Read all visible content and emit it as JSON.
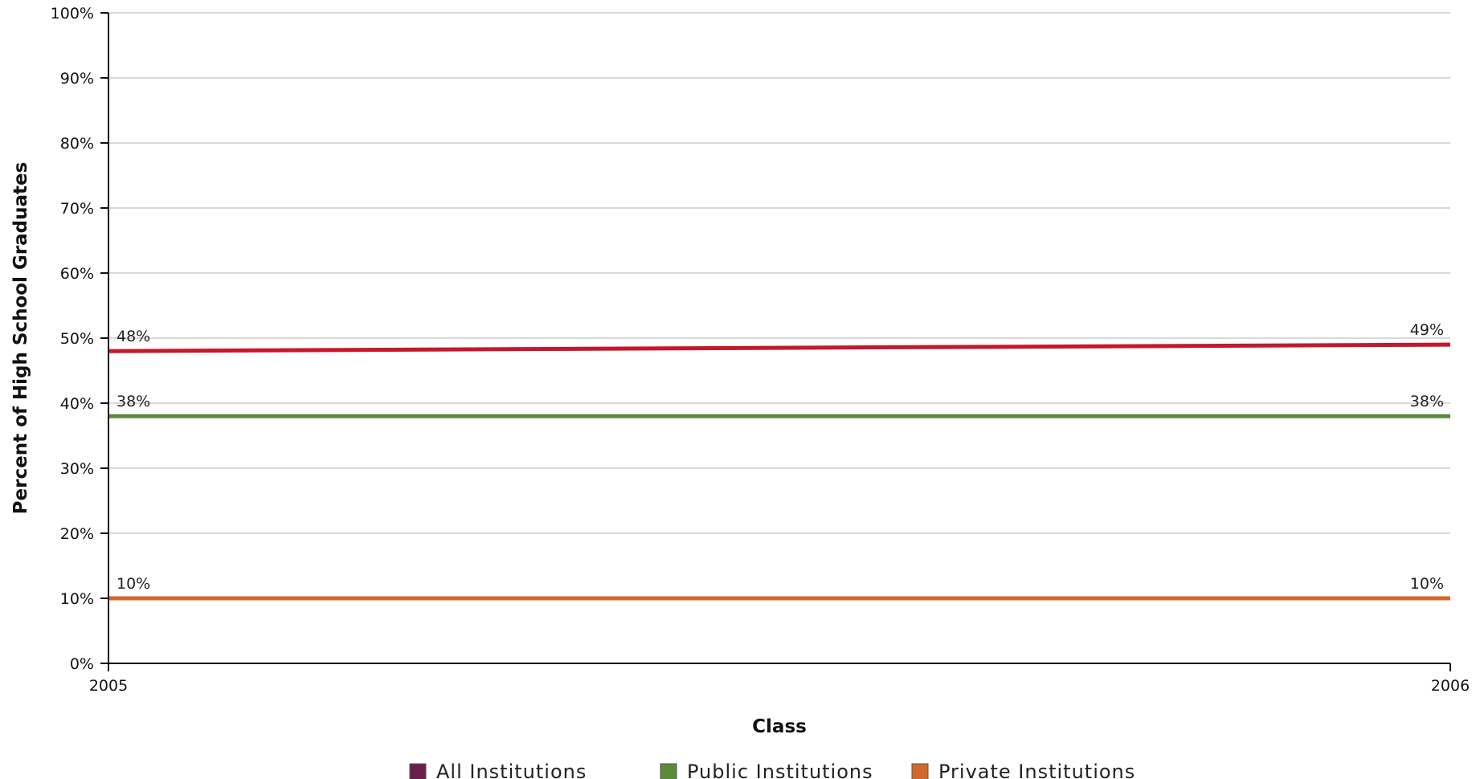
{
  "chart_data": {
    "type": "line",
    "title": "",
    "xlabel": "Class",
    "ylabel": "Percent of High School Graduates",
    "x": [
      2005,
      2006
    ],
    "x_tick_labels": [
      "2005",
      "2006"
    ],
    "y_tick_labels": [
      "0%",
      "10%",
      "20%",
      "30%",
      "40%",
      "50%",
      "60%",
      "70%",
      "80%",
      "90%",
      "100%"
    ],
    "ylim": [
      0,
      100
    ],
    "grid": true,
    "legend_position": "bottom",
    "series": [
      {
        "name": "All Institutions",
        "values": [
          48,
          49
        ],
        "labels": [
          "48%",
          "49%"
        ],
        "line_color": "#c4182b",
        "legend_color": "#6b1f4a"
      },
      {
        "name": "Public Institutions",
        "values": [
          38,
          38
        ],
        "labels": [
          "38%",
          "38%"
        ],
        "line_color": "#5b8a3a",
        "legend_color": "#5b8a3a"
      },
      {
        "name": "Private Institutions",
        "values": [
          10,
          10
        ],
        "labels": [
          "10%",
          "10%"
        ],
        "line_color": "#d2692a",
        "legend_color": "#d2692a"
      }
    ]
  }
}
